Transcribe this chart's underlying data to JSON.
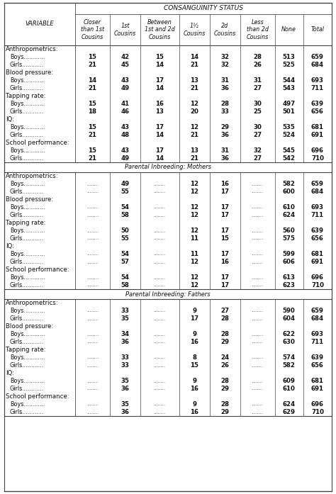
{
  "title_consanguinity": "Consanguinity Status",
  "col_headers": [
    "Closer\nthan 1st\nCousins",
    "1st\nCousins",
    "Between\n1st and 2d\nCousins",
    "1½Cousins",
    "2d\nCousins",
    "Less\nthan 2d\nCousins",
    "None",
    "Total"
  ],
  "variable_header": "Variable",
  "sections": [
    {
      "title": null,
      "categories": [
        {
          "name": "Anthropometrics:",
          "rows": [
            {
              "label": "Boys............",
              "vals": [
                "15",
                "42",
                "15",
                "14",
                "32",
                "28",
                "513",
                "659"
              ]
            },
            {
              "label": "Girls............",
              "vals": [
                "21",
                "45",
                "14",
                "21",
                "32",
                "26",
                "525",
                "684"
              ]
            }
          ]
        },
        {
          "name": "Blood pressure:",
          "rows": [
            {
              "label": "Boys............",
              "vals": [
                "14",
                "43",
                "17",
                "13",
                "31",
                "31",
                "544",
                "693"
              ]
            },
            {
              "label": "Girls............",
              "vals": [
                "21",
                "49",
                "14",
                "21",
                "36",
                "27",
                "543",
                "711"
              ]
            }
          ]
        },
        {
          "name": "Tapping rate:",
          "rows": [
            {
              "label": "Boys............",
              "vals": [
                "15",
                "41",
                "16",
                "12",
                "28",
                "30",
                "497",
                "639"
              ]
            },
            {
              "label": "Girls............",
              "vals": [
                "18",
                "46",
                "13",
                "20",
                "33",
                "25",
                "501",
                "656"
              ]
            }
          ]
        },
        {
          "name": "IQ:",
          "rows": [
            {
              "label": "Boys............",
              "vals": [
                "15",
                "43",
                "17",
                "12",
                "29",
                "30",
                "535",
                "681"
              ]
            },
            {
              "label": "Girls............",
              "vals": [
                "21",
                "48",
                "14",
                "21",
                "36",
                "27",
                "524",
                "691"
              ]
            }
          ]
        },
        {
          "name": "School performance:",
          "rows": [
            {
              "label": "Boys............",
              "vals": [
                "15",
                "43",
                "17",
                "13",
                "31",
                "32",
                "545",
                "696"
              ]
            },
            {
              "label": "Girls............",
              "vals": [
                "21",
                "49",
                "14",
                "21",
                "36",
                "27",
                "542",
                "710"
              ]
            }
          ]
        }
      ]
    },
    {
      "title": "Parental Inbreeding: Mothers",
      "categories": [
        {
          "name": "Anthropometrics:",
          "rows": [
            {
              "label": "Boys............",
              "vals": [
                "........",
                "49",
                "........",
                "12",
                "16",
                "........",
                "582",
                "659"
              ]
            },
            {
              "label": "Girls............",
              "vals": [
                "........",
                "55",
                "........",
                "12",
                "17",
                "........",
                "600",
                "684"
              ]
            }
          ]
        },
        {
          "name": "Blood pressure:",
          "rows": [
            {
              "label": "Boys............",
              "vals": [
                "........",
                "54",
                "........",
                "12",
                "17",
                "........",
                "610",
                "693"
              ]
            },
            {
              "label": "Girls............",
              "vals": [
                "........",
                "58",
                "........",
                "12",
                "17",
                "........",
                "624",
                "711"
              ]
            }
          ]
        },
        {
          "name": "Tapping rate:",
          "rows": [
            {
              "label": "Boys............",
              "vals": [
                "........",
                "50",
                "........",
                "12",
                "17",
                "........",
                "560",
                "639"
              ]
            },
            {
              "label": "Girls............",
              "vals": [
                "........",
                "55",
                "........",
                "11",
                "15",
                "........",
                "575",
                "656"
              ]
            }
          ]
        },
        {
          "name": "IQ:",
          "rows": [
            {
              "label": "Boys............",
              "vals": [
                "........",
                "54",
                "........",
                "11",
                "17",
                "........",
                "599",
                "681"
              ]
            },
            {
              "label": "Girls............",
              "vals": [
                "........",
                "57",
                "........",
                "12",
                "16",
                "........",
                "606",
                "691"
              ]
            }
          ]
        },
        {
          "name": "School performance:",
          "rows": [
            {
              "label": "Boys............",
              "vals": [
                "........",
                "54",
                "........",
                "12",
                "17",
                "........",
                "613",
                "696"
              ]
            },
            {
              "label": "Girls............",
              "vals": [
                "........",
                "58",
                "........",
                "12",
                "17",
                "........",
                "623",
                "710"
              ]
            }
          ]
        }
      ]
    },
    {
      "title": "Parental Inbreeding: Fathers",
      "categories": [
        {
          "name": "Anthropometrics:",
          "rows": [
            {
              "label": "Boys............",
              "vals": [
                "........",
                "33",
                "........",
                "9",
                "27",
                "........",
                "590",
                "659"
              ]
            },
            {
              "label": "Girls............",
              "vals": [
                "........",
                "35",
                "........",
                "17",
                "28",
                "........",
                "604",
                "684"
              ]
            }
          ]
        },
        {
          "name": "Blood pressure:",
          "rows": [
            {
              "label": "Boys............",
              "vals": [
                "........",
                "34",
                "........",
                "9",
                "28",
                "........",
                "622",
                "693"
              ]
            },
            {
              "label": "Girls............",
              "vals": [
                "........",
                "36",
                "........",
                "16",
                "29",
                "........",
                "630",
                "711"
              ]
            }
          ]
        },
        {
          "name": "Tapping rate:",
          "rows": [
            {
              "label": "Boys............",
              "vals": [
                "........",
                "33",
                "........",
                "8",
                "24",
                "........",
                "574",
                "639"
              ]
            },
            {
              "label": "Girls............",
              "vals": [
                "........",
                "33",
                "........",
                "15",
                "26",
                "........",
                "582",
                "656"
              ]
            }
          ]
        },
        {
          "name": "IQ:",
          "rows": [
            {
              "label": "Boys............",
              "vals": [
                "........",
                "35",
                "........",
                "9",
                "28",
                "........",
                "609",
                "681"
              ]
            },
            {
              "label": "Girls............",
              "vals": [
                "........",
                "36",
                "........",
                "16",
                "29",
                "........",
                "610",
                "691"
              ]
            }
          ]
        },
        {
          "name": "School performance:",
          "rows": [
            {
              "label": "Boys............",
              "vals": [
                "........",
                "35",
                "........",
                "9",
                "28",
                "........",
                "624",
                "696"
              ]
            },
            {
              "label": "Girls............",
              "vals": [
                "........",
                "36",
                "........",
                "16",
                "29",
                "........",
                "629",
                "710"
              ]
            }
          ]
        }
      ]
    }
  ]
}
